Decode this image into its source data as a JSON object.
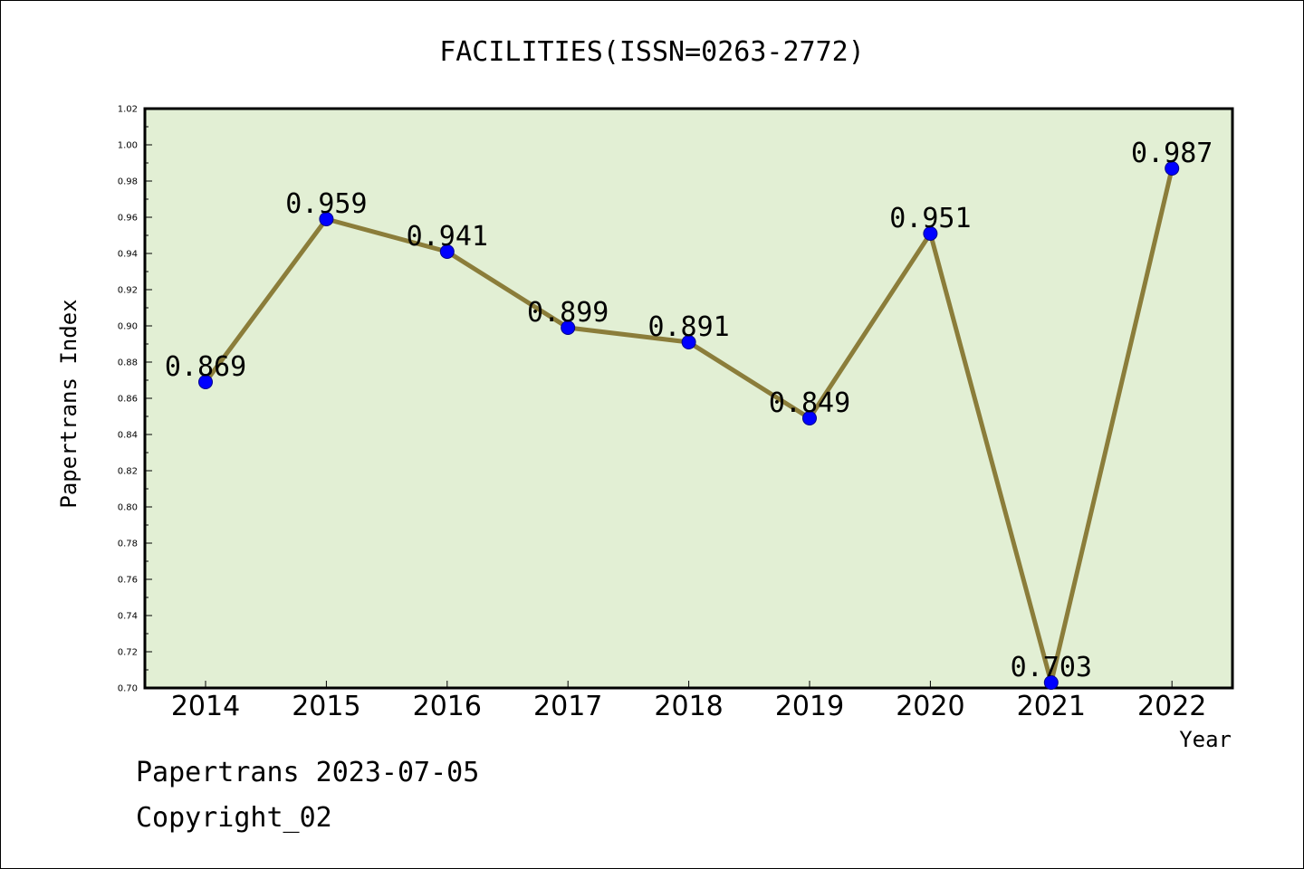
{
  "chart_data": {
    "type": "line",
    "title": "FACILITIES(ISSN=0263-2772)",
    "xlabel": "Year",
    "ylabel": "Papertrans Index",
    "categories": [
      "2014",
      "2015",
      "2016",
      "2017",
      "2018",
      "2019",
      "2020",
      "2021",
      "2022"
    ],
    "series": [
      {
        "values": [
          0.869,
          0.959,
          0.941,
          0.899,
          0.891,
          0.849,
          0.951,
          0.703,
          0.987
        ],
        "labels": [
          "0.869",
          "0.959",
          "0.941",
          "0.899",
          "0.891",
          "0.849",
          "0.951",
          "0.703",
          "0.987"
        ]
      }
    ],
    "ylim": [
      0.7,
      1.02
    ],
    "yticks": [
      "0.70",
      "0.72",
      "0.74",
      "0.76",
      "0.78",
      "0.80",
      "0.82",
      "0.84",
      "0.86",
      "0.88",
      "0.90",
      "0.92",
      "0.94",
      "0.96",
      "0.98",
      "1.00",
      "1.02"
    ],
    "grid": false,
    "colors": {
      "plot_background": "#e2efd4",
      "line": "#8b7d3a",
      "marker": "#0000ff"
    }
  },
  "footer": {
    "line1": "Papertrans 2023-07-05",
    "line2": "Copyright_02"
  }
}
